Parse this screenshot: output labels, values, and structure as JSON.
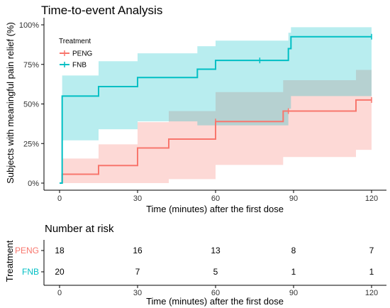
{
  "chart_data": [
    {
      "type": "line",
      "subtype": "kaplan-meier-step",
      "title": "Time-to-event Analysis",
      "xlabel": "Time (minutes) after the first dose",
      "ylabel": "Subjects with meaningful pain relief (%)",
      "xlim": [
        -5,
        125
      ],
      "ylim": [
        -3,
        103
      ],
      "x_ticks": [
        0,
        30,
        60,
        90,
        120
      ],
      "y_ticks": [
        0,
        25,
        50,
        75,
        100
      ],
      "y_tick_labels": [
        "0%",
        "25%",
        "50%",
        "75%",
        "100%"
      ],
      "grid": false,
      "legend": {
        "title": "Treatment",
        "position": "top-left"
      },
      "series": [
        {
          "name": "PENG",
          "color": "#F8766D",
          "band_color": "#FDDAD7",
          "steps": [
            {
              "x": 0,
              "y": 0,
              "lower": 0,
              "upper": 0
            },
            {
              "x": 1,
              "y": 5.6,
              "lower": 0,
              "upper": 15.5
            },
            {
              "x": 15,
              "y": 11.1,
              "lower": 0,
              "upper": 24.5
            },
            {
              "x": 30,
              "y": 22.2,
              "lower": 0,
              "upper": 38.5
            },
            {
              "x": 42,
              "y": 27.8,
              "lower": 2.5,
              "upper": 45.5
            },
            {
              "x": 60,
              "y": 38.9,
              "lower": 11.5,
              "upper": 57.5
            },
            {
              "x": 86,
              "y": 45.5,
              "lower": 16.5,
              "upper": 65
            },
            {
              "x": 114,
              "y": 52.5,
              "lower": 21,
              "upper": 71.5
            }
          ],
          "x_end": 120,
          "censor_marks": [
            {
              "x": 60,
              "y": 38.9
            },
            {
              "x": 88,
              "y": 45.5
            },
            {
              "x": 120,
              "y": 52.5
            }
          ]
        },
        {
          "name": "FNB",
          "color": "#00BFC4",
          "band_color": "#B7EBEE",
          "steps": [
            {
              "x": 0,
              "y": 0,
              "lower": 0,
              "upper": 0
            },
            {
              "x": 1,
              "y": 55,
              "lower": 27,
              "upper": 68
            },
            {
              "x": 15,
              "y": 61,
              "lower": 34,
              "upper": 77
            },
            {
              "x": 30,
              "y": 66.7,
              "lower": 39,
              "upper": 82
            },
            {
              "x": 53,
              "y": 72,
              "lower": 36.5,
              "upper": 86.5
            },
            {
              "x": 60,
              "y": 77.5,
              "lower": 36.5,
              "upper": 90
            },
            {
              "x": 88,
              "y": 85,
              "lower": 47,
              "upper": 95
            },
            {
              "x": 89,
              "y": 92.5,
              "lower": 55,
              "upper": 98.5
            }
          ],
          "x_end": 120,
          "censor_marks": [
            {
              "x": 77,
              "y": 77.5
            },
            {
              "x": 120,
              "y": 92.5
            }
          ]
        }
      ]
    },
    {
      "type": "table",
      "title": "Number at risk",
      "xlabel": "Time (minutes) after the first dose",
      "ylabel": "Treatment",
      "x_ticks": [
        0,
        30,
        60,
        90,
        120
      ],
      "rows": [
        {
          "name": "PENG",
          "color": "#F8766D",
          "values": [
            18,
            16,
            13,
            8,
            7
          ]
        },
        {
          "name": "FNB",
          "color": "#00BFC4",
          "values": [
            20,
            7,
            5,
            1,
            1
          ]
        }
      ]
    }
  ]
}
